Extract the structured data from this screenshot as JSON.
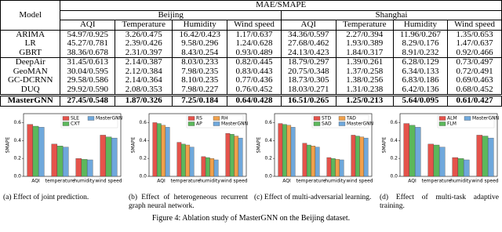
{
  "table": {
    "model_header": "Model",
    "metric_header": "MAE/SMAPE",
    "cities": [
      "Beijing",
      "Shanghai"
    ],
    "columns": [
      "AQI",
      "Temperature",
      "Humidity",
      "Wind speed"
    ],
    "rows": [
      [
        "ARIMA",
        "54.97/0.925",
        "3.26/0.475",
        "16.42/0.423",
        "1.17/0.637",
        "34.36/0.597",
        "2.27/0.394",
        "11.96/0.267",
        "1.35/0.653"
      ],
      [
        "LR",
        "45.27/0.781",
        "2.39/0.426",
        "9.58/0.296",
        "1.24/0.628",
        "27.68/0.462",
        "1.93/0.389",
        "8.29/0.176",
        "1.47/0.637"
      ],
      [
        "GBRT",
        "38.36/0.678",
        "2.31/0.397",
        "8.43/0.254",
        "0.93/0.489",
        "24.13/0.423",
        "1.84/0.317",
        "8.91/0.232",
        "0.92/0.466"
      ],
      [
        "DeepAir",
        "31.45/0.613",
        "2.14/0.387",
        "8.03/0.233",
        "0.82/0.445",
        "18.79/0.297",
        "1.39/0.261",
        "6.28/0.129",
        "0.73/0.497"
      ],
      [
        "GeoMAN",
        "30.04/0.595",
        "2.12/0.384",
        "7.98/0.235",
        "0.83/0.443",
        "20.75/0.348",
        "1.37/0.258",
        "6.34/0.133",
        "0.72/0.491"
      ],
      [
        "GC-DCRNN",
        "29.58/0.586",
        "2.14/0.364",
        "8.10/0.235",
        "0.77/0.436",
        "18.73/0.305",
        "1.38/0.256",
        "6.83/0.186",
        "0.69/0.463"
      ],
      [
        "DUQ",
        "29.92/0.590",
        "2.08/0.353",
        "7.98/0.227",
        "0.76/0.452",
        "18.03/0.271",
        "1.31/0.238",
        "6.42/0.136",
        "0.68/0.452"
      ],
      [
        "MasterGNN",
        "27.45/0.548",
        "1.87/0.326",
        "7.25/0.184",
        "0.64/0.428",
        "16.51/0.265",
        "1.25/0.213",
        "5.64/0.095",
        "0.61/0.427"
      ]
    ]
  },
  "chart_data": [
    {
      "type": "bar",
      "ylabel": "SMAPE",
      "categories": [
        "AQI",
        "temperature",
        "humidity",
        "wind speed"
      ],
      "ylim": [
        0,
        0.7
      ],
      "yticks": [
        {
          "value": 0,
          "label": "0.0"
        },
        0.2,
        0.4,
        0.6
      ],
      "series": [
        {
          "name": "SLE",
          "color": "#e5534b",
          "values": [
            0.58,
            0.36,
            0.2,
            0.46
          ]
        },
        {
          "name": "CXT",
          "color": "#5cb85c",
          "values": [
            0.56,
            0.34,
            0.19,
            0.44
          ]
        },
        {
          "name": "MasterGNN",
          "color": "#6fa8dc",
          "values": [
            0.548,
            0.326,
            0.184,
            0.428
          ]
        }
      ]
    },
    {
      "type": "bar",
      "ylabel": "SMAPE",
      "categories": [
        "AQI",
        "temperature",
        "humidity",
        "wind speed"
      ],
      "ylim": [
        0,
        0.7
      ],
      "yticks": [
        {
          "value": 0,
          "label": "0.0"
        },
        0.2,
        0.4,
        0.6
      ],
      "series": [
        {
          "name": "RS",
          "color": "#e5534b",
          "values": [
            0.6,
            0.38,
            0.22,
            0.48
          ]
        },
        {
          "name": "AP",
          "color": "#5cb85c",
          "values": [
            0.59,
            0.36,
            0.21,
            0.47
          ]
        },
        {
          "name": "RH",
          "color": "#f0a04b",
          "values": [
            0.57,
            0.35,
            0.2,
            0.45
          ]
        },
        {
          "name": "MasterGNN",
          "color": "#6fa8dc",
          "values": [
            0.548,
            0.326,
            0.184,
            0.428
          ]
        }
      ]
    },
    {
      "type": "bar",
      "ylabel": "SMAPE",
      "categories": [
        "AQI",
        "temperature",
        "humidity",
        "wind speed"
      ],
      "ylim": [
        0,
        0.7
      ],
      "yticks": [
        {
          "value": 0,
          "label": "0.0"
        },
        0.2,
        0.4,
        0.6
      ],
      "series": [
        {
          "name": "STD",
          "color": "#e5534b",
          "values": [
            0.59,
            0.37,
            0.21,
            0.46
          ]
        },
        {
          "name": "SAD",
          "color": "#5cb85c",
          "values": [
            0.58,
            0.35,
            0.2,
            0.45
          ]
        },
        {
          "name": "TAD",
          "color": "#f0a04b",
          "values": [
            0.57,
            0.34,
            0.19,
            0.44
          ]
        },
        {
          "name": "MasterGNN",
          "color": "#6fa8dc",
          "values": [
            0.548,
            0.326,
            0.184,
            0.428
          ]
        }
      ]
    },
    {
      "type": "bar",
      "ylabel": "SMAPE",
      "categories": [
        "AQI",
        "temperature",
        "humidity",
        "wind speed"
      ],
      "ylim": [
        0,
        0.7
      ],
      "yticks": [
        {
          "value": 0,
          "label": "0.0"
        },
        0.2,
        0.4,
        0.6
      ],
      "series": [
        {
          "name": "ALM",
          "color": "#e5534b",
          "values": [
            0.59,
            0.36,
            0.21,
            0.46
          ]
        },
        {
          "name": "FLM",
          "color": "#5cb85c",
          "values": [
            0.57,
            0.35,
            0.2,
            0.45
          ]
        },
        {
          "name": "MasterGNN",
          "color": "#6fa8dc",
          "values": [
            0.548,
            0.326,
            0.184,
            0.428
          ]
        }
      ]
    }
  ],
  "captions": [
    "(a) Effect of joint prediction.",
    "(b) Effect of heterogeneous recurrent graph neural network.",
    "(c) Effect of multi-adversarial learning.",
    "(d) Effect of multi-task adaptive training."
  ],
  "figure_caption": "Figure 4: Ablation study of MasterGNN on the Beijing dataset."
}
